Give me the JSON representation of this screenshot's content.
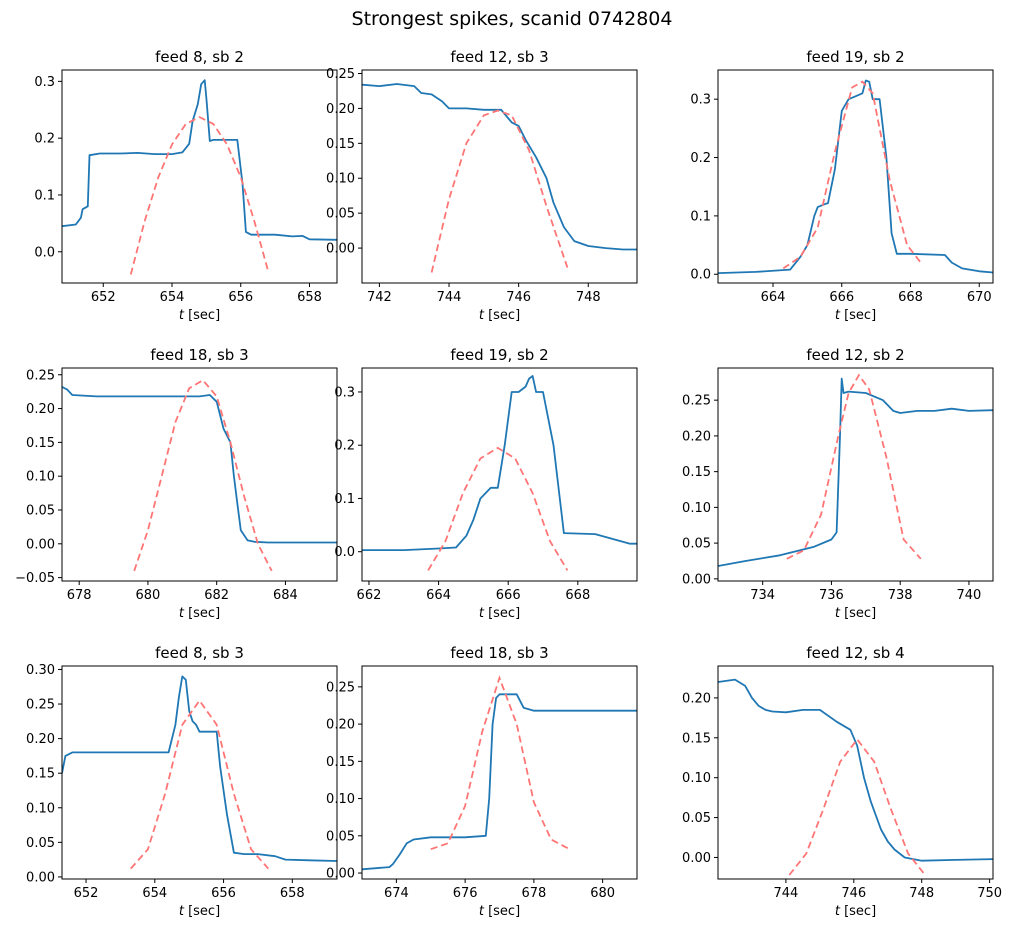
{
  "figure": {
    "title": "Strongest spikes, scanid 0742804"
  },
  "colors": {
    "data": "#1f77b4",
    "fit": "#ff7575"
  },
  "chart_data": [
    {
      "type": "line",
      "title": "feed 8, sb 2",
      "xlabel": "t [sec]",
      "xlim": [
        650.8,
        658.8
      ],
      "ylim": [
        -0.055,
        0.32
      ],
      "xticks": [
        652,
        654,
        656,
        658
      ],
      "yticks": [
        0.0,
        0.1,
        0.2,
        0.3
      ],
      "ydec": 1,
      "series": [
        {
          "style": "solid",
          "x": [
            650.8,
            651.2,
            651.35,
            651.4,
            651.55,
            651.6,
            651.9,
            652.5,
            653.0,
            653.5,
            654.0,
            654.3,
            654.5,
            654.6,
            654.75,
            654.85,
            654.95,
            655.0,
            655.1,
            655.2,
            655.5,
            655.9,
            656.05,
            656.15,
            656.3,
            657.0,
            657.5,
            657.8,
            658.0,
            658.8
          ],
          "y": [
            0.045,
            0.048,
            0.06,
            0.075,
            0.08,
            0.17,
            0.173,
            0.173,
            0.174,
            0.172,
            0.172,
            0.175,
            0.19,
            0.23,
            0.26,
            0.295,
            0.302,
            0.27,
            0.195,
            0.197,
            0.197,
            0.197,
            0.12,
            0.035,
            0.03,
            0.03,
            0.027,
            0.028,
            0.022,
            0.021
          ]
        },
        {
          "style": "dashed",
          "x": [
            652.8,
            653.2,
            653.6,
            654.0,
            654.4,
            654.8,
            655.2,
            655.6,
            656.0,
            656.4,
            656.8
          ],
          "y": [
            -0.04,
            0.053,
            0.131,
            0.189,
            0.225,
            0.237,
            0.225,
            0.189,
            0.131,
            0.053,
            -0.035
          ]
        }
      ]
    },
    {
      "type": "line",
      "title": "feed 12, sb 3",
      "xlabel": "t [sec]",
      "xlim": [
        741.5,
        749.4
      ],
      "ylim": [
        -0.05,
        0.255
      ],
      "xticks": [
        742,
        744,
        746,
        748
      ],
      "yticks": [
        0.0,
        0.05,
        0.1,
        0.15,
        0.2,
        0.25
      ],
      "ydec": 2,
      "series": [
        {
          "style": "solid",
          "x": [
            741.5,
            742.0,
            742.5,
            743.0,
            743.2,
            743.5,
            743.8,
            744.0,
            744.5,
            745.0,
            745.5,
            745.8,
            746.0,
            746.2,
            746.5,
            746.8,
            747.0,
            747.3,
            747.6,
            748.0,
            748.5,
            749.0,
            749.4
          ],
          "y": [
            0.234,
            0.232,
            0.235,
            0.232,
            0.222,
            0.22,
            0.21,
            0.2,
            0.2,
            0.198,
            0.198,
            0.18,
            0.175,
            0.155,
            0.13,
            0.1,
            0.065,
            0.03,
            0.01,
            0.003,
            0.0,
            -0.002,
            -0.002
          ]
        },
        {
          "style": "dashed",
          "x": [
            743.5,
            744.0,
            744.5,
            745.0,
            745.4,
            745.8,
            746.3,
            746.8,
            747.4
          ],
          "y": [
            -0.035,
            0.07,
            0.15,
            0.19,
            0.197,
            0.19,
            0.14,
            0.06,
            -0.028
          ]
        }
      ]
    },
    {
      "type": "line",
      "title": "feed 19, sb 2",
      "xlabel": "t [sec]",
      "xlim": [
        662.4,
        670.4
      ],
      "ylim": [
        -0.015,
        0.35
      ],
      "xticks": [
        664,
        666,
        668,
        670
      ],
      "yticks": [
        0.0,
        0.1,
        0.2,
        0.3
      ],
      "ydec": 1,
      "series": [
        {
          "style": "solid",
          "x": [
            662.4,
            663.5,
            664.5,
            664.8,
            665.0,
            665.2,
            665.3,
            665.5,
            665.6,
            665.8,
            666.0,
            666.2,
            666.4,
            666.6,
            666.7,
            666.8,
            666.9,
            667.1,
            667.3,
            667.45,
            667.6,
            668.0,
            669.0,
            669.2,
            669.5,
            670.0,
            670.4
          ],
          "y": [
            0.002,
            0.004,
            0.008,
            0.03,
            0.05,
            0.1,
            0.115,
            0.12,
            0.122,
            0.18,
            0.28,
            0.3,
            0.305,
            0.31,
            0.332,
            0.33,
            0.3,
            0.3,
            0.2,
            0.07,
            0.035,
            0.035,
            0.033,
            0.02,
            0.01,
            0.005,
            0.003
          ]
        },
        {
          "style": "dashed",
          "x": [
            664.3,
            664.8,
            665.3,
            665.8,
            666.3,
            666.6,
            666.9,
            667.4,
            667.9,
            668.3
          ],
          "y": [
            0.01,
            0.03,
            0.08,
            0.21,
            0.32,
            0.33,
            0.31,
            0.16,
            0.05,
            0.02
          ]
        }
      ]
    },
    {
      "type": "line",
      "title": "feed 18, sb 3",
      "xlabel": "t [sec]",
      "xlim": [
        677.5,
        685.5
      ],
      "ylim": [
        -0.055,
        0.26
      ],
      "xticks": [
        678,
        680,
        682,
        684
      ],
      "yticks": [
        -0.05,
        0.0,
        0.05,
        0.1,
        0.15,
        0.2,
        0.25
      ],
      "ydec": 2,
      "series": [
        {
          "style": "solid",
          "x": [
            677.5,
            677.65,
            677.8,
            678.5,
            679.5,
            680.5,
            681.5,
            681.8,
            682.0,
            682.2,
            682.4,
            682.5,
            682.6,
            682.7,
            682.9,
            683.1,
            683.5,
            684.0,
            685.0,
            685.5
          ],
          "y": [
            0.232,
            0.228,
            0.22,
            0.218,
            0.218,
            0.218,
            0.218,
            0.22,
            0.21,
            0.17,
            0.15,
            0.1,
            0.06,
            0.02,
            0.005,
            0.003,
            0.002,
            0.002,
            0.002,
            0.002
          ]
        },
        {
          "style": "dashed",
          "x": [
            679.6,
            680.0,
            680.4,
            680.8,
            681.2,
            681.6,
            682.0,
            682.4,
            682.8,
            683.2,
            683.6
          ],
          "y": [
            -0.04,
            0.02,
            0.1,
            0.18,
            0.23,
            0.242,
            0.218,
            0.15,
            0.07,
            0.0,
            -0.04
          ]
        }
      ]
    },
    {
      "type": "line",
      "title": "feed 19, sb 2",
      "xlabel": "t [sec]",
      "xlim": [
        661.8,
        669.7
      ],
      "ylim": [
        -0.055,
        0.345
      ],
      "xticks": [
        662,
        664,
        666,
        668
      ],
      "yticks": [
        0.0,
        0.1,
        0.2,
        0.3
      ],
      "ydec": 1,
      "series": [
        {
          "style": "solid",
          "x": [
            661.8,
            663.0,
            664.0,
            664.5,
            664.8,
            665.0,
            665.2,
            665.5,
            665.7,
            665.9,
            666.1,
            666.3,
            666.5,
            666.6,
            666.7,
            666.8,
            667.0,
            667.3,
            667.6,
            668.5,
            669.5,
            669.7
          ],
          "y": [
            0.003,
            0.003,
            0.006,
            0.008,
            0.03,
            0.06,
            0.1,
            0.12,
            0.12,
            0.2,
            0.3,
            0.3,
            0.31,
            0.325,
            0.33,
            0.3,
            0.3,
            0.2,
            0.035,
            0.033,
            0.015,
            0.015
          ]
        },
        {
          "style": "dashed",
          "x": [
            663.7,
            664.2,
            664.7,
            665.2,
            665.7,
            666.2,
            666.7,
            667.2,
            667.7
          ],
          "y": [
            -0.035,
            0.02,
            0.11,
            0.175,
            0.195,
            0.175,
            0.11,
            0.02,
            -0.035
          ]
        }
      ]
    },
    {
      "type": "line",
      "title": "feed 12, sb 2",
      "xlabel": "t [sec]",
      "xlim": [
        732.7,
        740.7
      ],
      "ylim": [
        -0.003,
        0.295
      ],
      "xticks": [
        734,
        736,
        738,
        740
      ],
      "yticks": [
        0.0,
        0.05,
        0.1,
        0.15,
        0.2,
        0.25
      ],
      "ydec": 2,
      "series": [
        {
          "style": "solid",
          "x": [
            732.7,
            733.5,
            734.5,
            735.5,
            736.0,
            736.15,
            736.25,
            736.3,
            736.35,
            736.5,
            737.0,
            737.5,
            737.8,
            738.0,
            738.5,
            739.0,
            739.5,
            740.0,
            740.7
          ],
          "y": [
            0.018,
            0.025,
            0.033,
            0.045,
            0.055,
            0.065,
            0.2,
            0.28,
            0.26,
            0.262,
            0.26,
            0.25,
            0.235,
            0.232,
            0.235,
            0.235,
            0.238,
            0.235,
            0.236
          ]
        },
        {
          "style": "dashed",
          "x": [
            734.7,
            735.2,
            735.7,
            736.2,
            736.5,
            736.8,
            737.1,
            737.6,
            738.1,
            738.6
          ],
          "y": [
            0.028,
            0.04,
            0.09,
            0.2,
            0.26,
            0.285,
            0.265,
            0.17,
            0.055,
            0.028
          ]
        }
      ]
    },
    {
      "type": "line",
      "title": "feed 8, sb 3",
      "xlabel": "t [sec]",
      "xlim": [
        651.3,
        659.3
      ],
      "ylim": [
        -0.003,
        0.305
      ],
      "xticks": [
        652,
        654,
        656,
        658
      ],
      "yticks": [
        0.0,
        0.05,
        0.1,
        0.15,
        0.2,
        0.25,
        0.3
      ],
      "ydec": 2,
      "series": [
        {
          "style": "solid",
          "x": [
            651.3,
            651.4,
            651.6,
            652.5,
            653.5,
            654.2,
            654.4,
            654.6,
            654.7,
            654.8,
            654.9,
            655.0,
            655.1,
            655.2,
            655.3,
            655.5,
            655.8,
            655.9,
            656.1,
            656.3,
            656.6,
            657.0,
            657.5,
            657.8,
            658.5,
            659.3
          ],
          "y": [
            0.15,
            0.175,
            0.18,
            0.18,
            0.18,
            0.18,
            0.18,
            0.22,
            0.26,
            0.29,
            0.285,
            0.24,
            0.225,
            0.22,
            0.21,
            0.21,
            0.21,
            0.16,
            0.09,
            0.035,
            0.033,
            0.033,
            0.03,
            0.025,
            0.024,
            0.023
          ]
        },
        {
          "style": "dashed",
          "x": [
            653.3,
            653.8,
            654.3,
            654.8,
            655.3,
            655.8,
            656.3,
            656.8,
            657.3
          ],
          "y": [
            0.012,
            0.04,
            0.12,
            0.22,
            0.255,
            0.22,
            0.12,
            0.04,
            0.012
          ]
        }
      ]
    },
    {
      "type": "line",
      "title": "feed 18, sb 3",
      "xlabel": "t [sec]",
      "xlim": [
        673.0,
        681.0
      ],
      "ylim": [
        -0.008,
        0.278
      ],
      "xticks": [
        674,
        676,
        678,
        680
      ],
      "yticks": [
        0.0,
        0.05,
        0.1,
        0.15,
        0.2,
        0.25
      ],
      "ydec": 2,
      "series": [
        {
          "style": "solid",
          "x": [
            673.0,
            673.8,
            673.9,
            674.1,
            674.3,
            674.5,
            675.0,
            676.0,
            676.6,
            676.7,
            676.8,
            676.9,
            677.0,
            677.2,
            677.5,
            677.7,
            678.0,
            679.0,
            680.0,
            681.0
          ],
          "y": [
            0.005,
            0.008,
            0.012,
            0.025,
            0.04,
            0.045,
            0.048,
            0.048,
            0.05,
            0.1,
            0.2,
            0.235,
            0.24,
            0.24,
            0.24,
            0.222,
            0.218,
            0.218,
            0.218,
            0.218
          ]
        },
        {
          "style": "dashed",
          "x": [
            675.0,
            675.5,
            676.0,
            676.5,
            677.0,
            677.5,
            678.0,
            678.5,
            679.0
          ],
          "y": [
            0.032,
            0.04,
            0.09,
            0.19,
            0.262,
            0.2,
            0.095,
            0.045,
            0.033
          ]
        }
      ]
    },
    {
      "type": "line",
      "title": "feed 12, sb 4",
      "xlabel": "t [sec]",
      "xlim": [
        742.0,
        750.1
      ],
      "ylim": [
        -0.027,
        0.24
      ],
      "xticks": [
        744,
        746,
        748,
        750
      ],
      "yticks": [
        0.0,
        0.05,
        0.1,
        0.15,
        0.2
      ],
      "ydec": 2,
      "series": [
        {
          "style": "solid",
          "x": [
            742.0,
            742.5,
            742.8,
            743.0,
            743.2,
            743.4,
            743.6,
            744.0,
            744.5,
            745.0,
            745.5,
            745.9,
            746.1,
            746.3,
            746.5,
            746.8,
            747.0,
            747.2,
            747.5,
            748.0,
            749.0,
            750.1
          ],
          "y": [
            0.22,
            0.223,
            0.215,
            0.2,
            0.19,
            0.185,
            0.183,
            0.182,
            0.185,
            0.185,
            0.17,
            0.16,
            0.14,
            0.1,
            0.07,
            0.035,
            0.02,
            0.01,
            0.0,
            -0.004,
            -0.003,
            -0.002
          ]
        },
        {
          "style": "dashed",
          "x": [
            744.1,
            744.6,
            745.1,
            745.6,
            746.1,
            746.6,
            747.1,
            747.6,
            748.1
          ],
          "y": [
            -0.022,
            0.005,
            0.06,
            0.12,
            0.148,
            0.12,
            0.06,
            0.005,
            -0.022
          ]
        }
      ]
    }
  ]
}
